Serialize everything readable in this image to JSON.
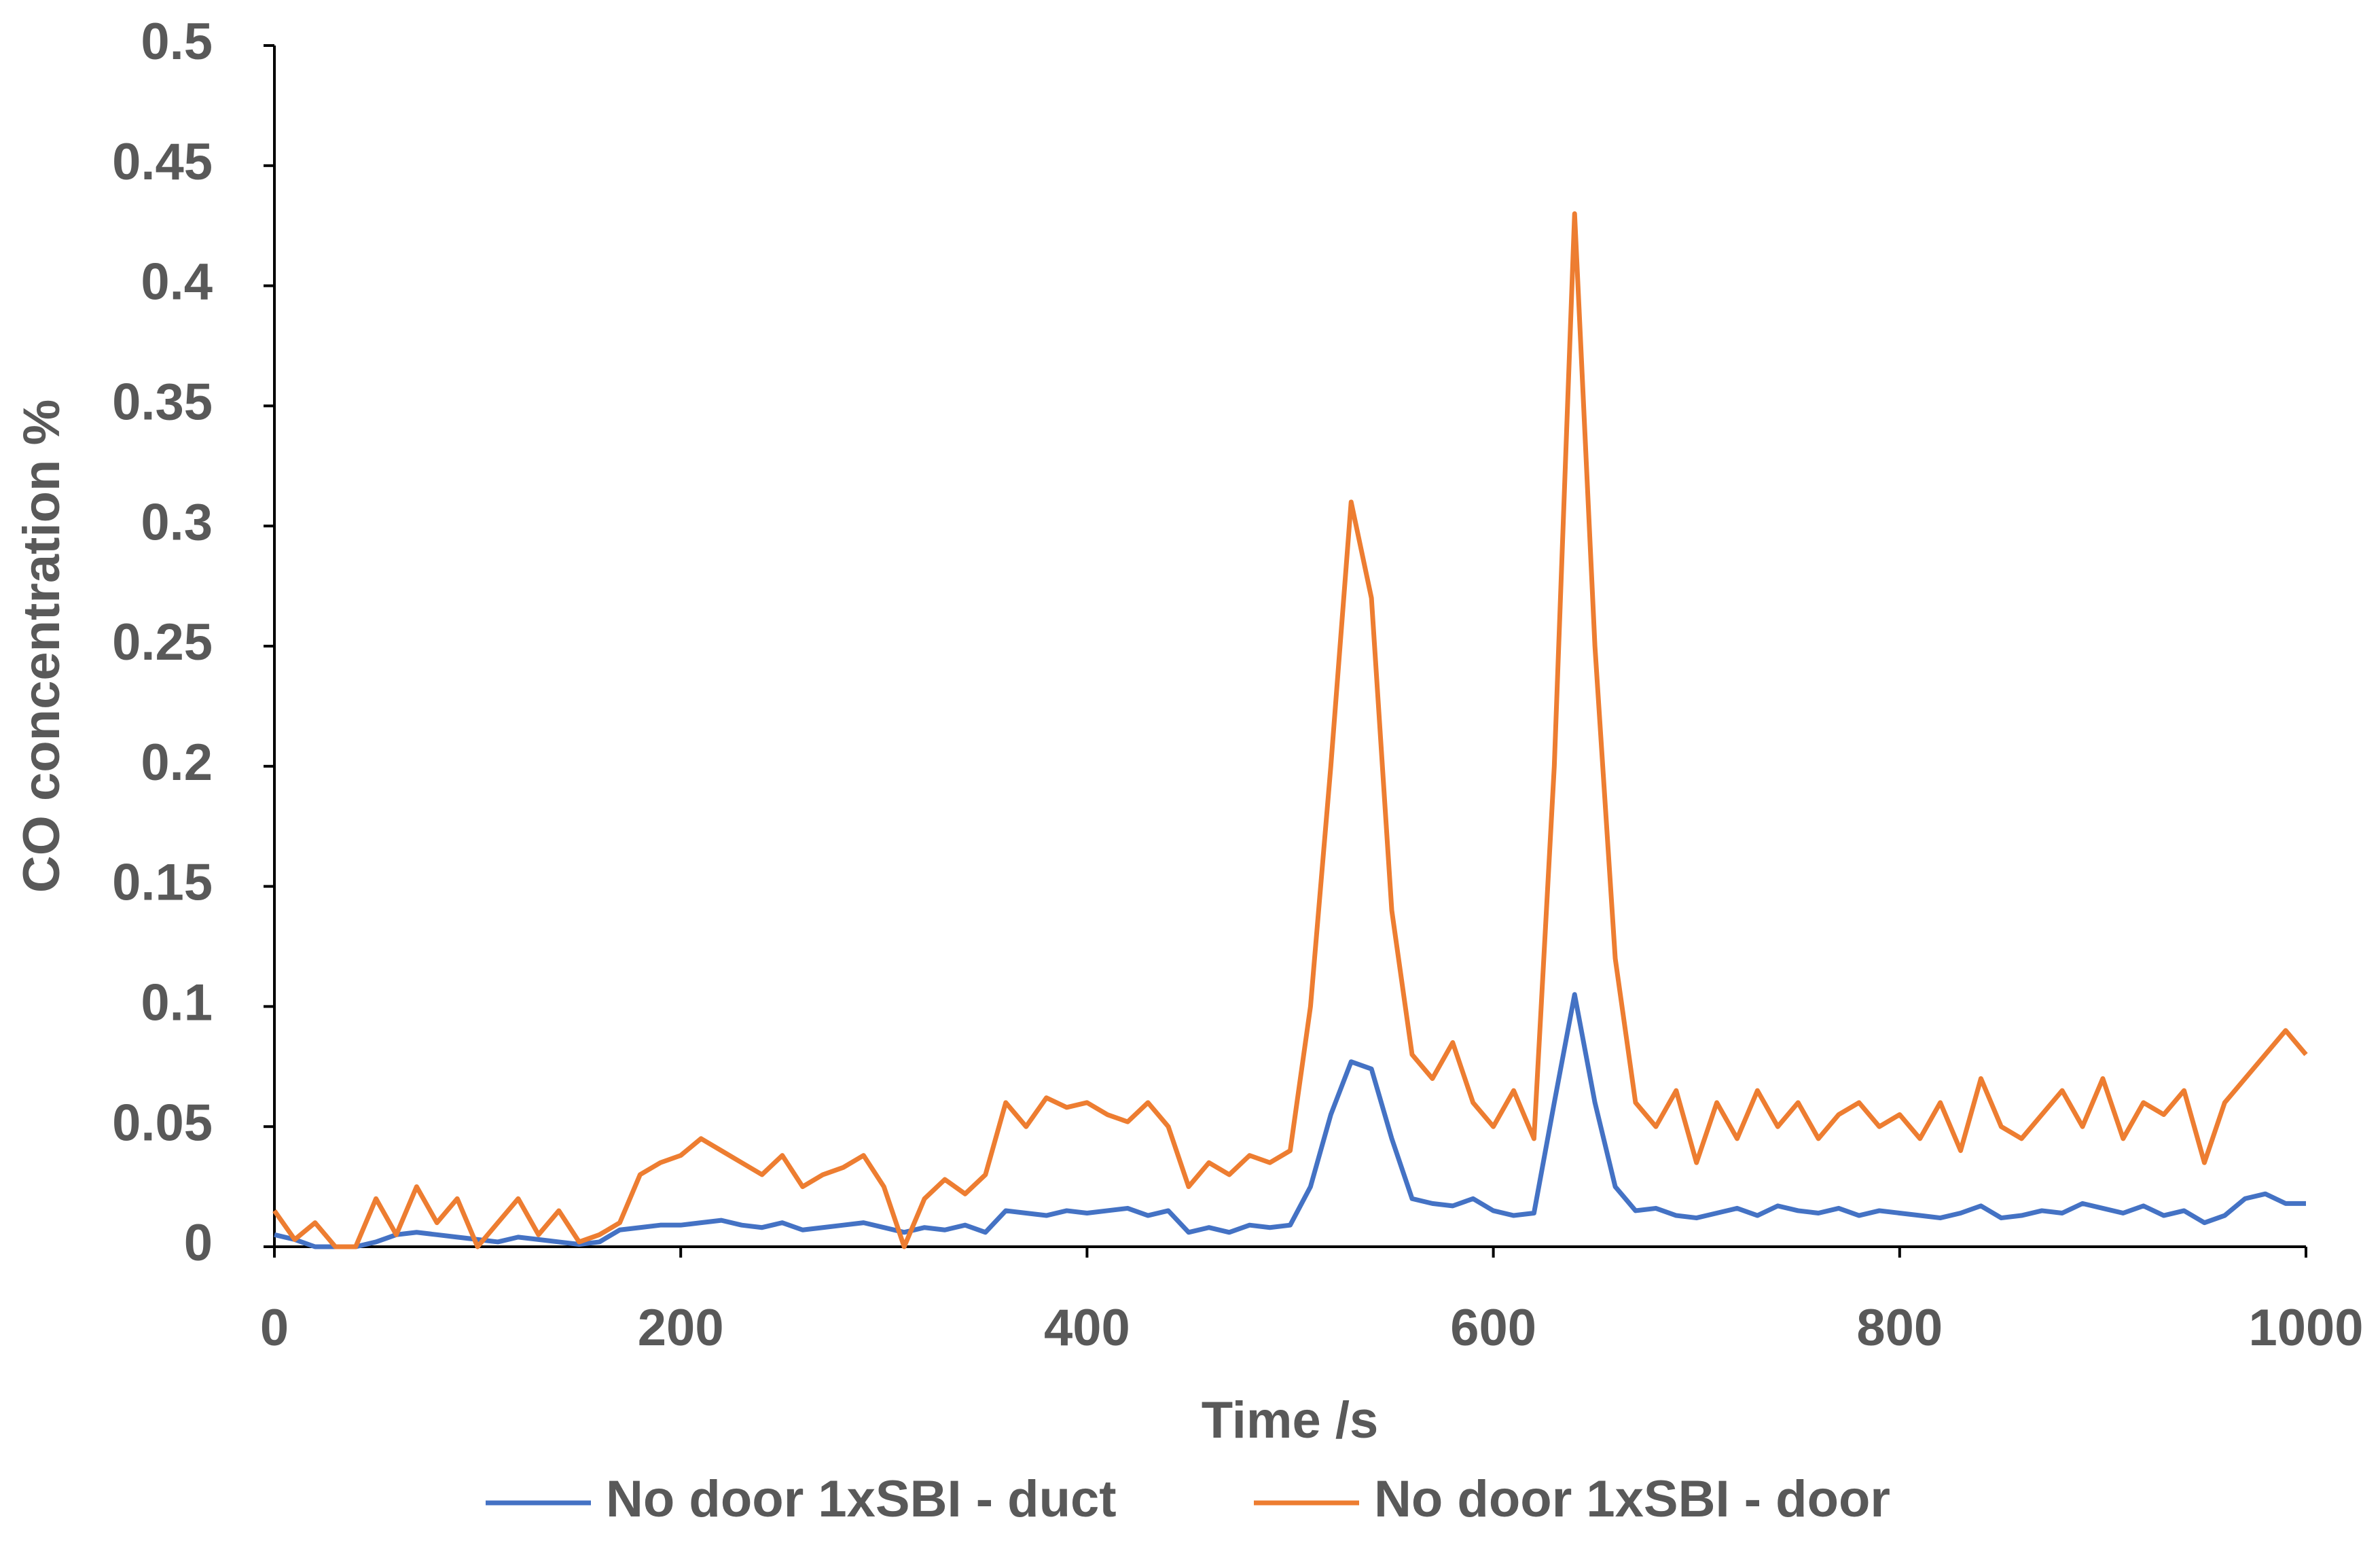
{
  "chart_data": {
    "type": "line",
    "xlabel": "Time /s",
    "ylabel": "CO concentration %",
    "x": [
      0,
      10,
      20,
      30,
      40,
      50,
      60,
      70,
      80,
      90,
      100,
      110,
      120,
      130,
      140,
      150,
      160,
      170,
      180,
      190,
      200,
      210,
      220,
      230,
      240,
      250,
      260,
      270,
      280,
      290,
      300,
      310,
      320,
      330,
      340,
      350,
      360,
      370,
      380,
      390,
      400,
      410,
      420,
      430,
      440,
      450,
      460,
      470,
      480,
      490,
      500,
      510,
      520,
      530,
      540,
      550,
      560,
      570,
      580,
      590,
      600,
      610,
      620,
      630,
      640,
      650,
      660,
      670,
      680,
      690,
      700,
      710,
      720,
      730,
      740,
      750,
      760,
      770,
      780,
      790,
      800,
      810,
      820,
      830,
      840,
      850,
      860,
      870,
      880,
      890,
      900,
      910,
      920,
      930,
      940,
      950,
      960,
      970,
      980,
      990,
      1000
    ],
    "series": [
      {
        "name": "No door 1xSBI - duct",
        "color": "#4472c4",
        "values": [
          0.005,
          0.003,
          0,
          0,
          0,
          0.002,
          0.005,
          0.006,
          0.005,
          0.004,
          0.003,
          0.002,
          0.004,
          0.003,
          0.002,
          0.001,
          0.002,
          0.007,
          0.008,
          0.009,
          0.009,
          0.01,
          0.011,
          0.009,
          0.008,
          0.01,
          0.007,
          0.008,
          0.009,
          0.01,
          0.008,
          0.006,
          0.008,
          0.007,
          0.009,
          0.006,
          0.015,
          0.014,
          0.013,
          0.015,
          0.014,
          0.015,
          0.016,
          0.013,
          0.015,
          0.006,
          0.008,
          0.006,
          0.009,
          0.008,
          0.009,
          0.025,
          0.055,
          0.077,
          0.074,
          0.045,
          0.02,
          0.018,
          0.017,
          0.02,
          0.015,
          0.013,
          0.014,
          0.06,
          0.105,
          0.06,
          0.025,
          0.015,
          0.016,
          0.013,
          0.012,
          0.014,
          0.016,
          0.013,
          0.017,
          0.015,
          0.014,
          0.016,
          0.013,
          0.015,
          0.014,
          0.013,
          0.012,
          0.014,
          0.017,
          0.012,
          0.013,
          0.015,
          0.014,
          0.018,
          0.016,
          0.014,
          0.017,
          0.013,
          0.015,
          0.01,
          0.013,
          0.02,
          0.022,
          0.018,
          0.018
        ]
      },
      {
        "name": "No door 1xSBI - door",
        "color": "#ed7d31",
        "values": [
          0.015,
          0.003,
          0.01,
          0,
          0,
          0.02,
          0.005,
          0.025,
          0.01,
          0.02,
          0,
          0.01,
          0.02,
          0.005,
          0.015,
          0.002,
          0.005,
          0.01,
          0.03,
          0.035,
          0.038,
          0.045,
          0.04,
          0.035,
          0.03,
          0.038,
          0.025,
          0.03,
          0.033,
          0.038,
          0.025,
          0,
          0.02,
          0.028,
          0.022,
          0.03,
          0.06,
          0.05,
          0.062,
          0.058,
          0.06,
          0.055,
          0.052,
          0.06,
          0.05,
          0.025,
          0.035,
          0.03,
          0.038,
          0.035,
          0.04,
          0.1,
          0.2,
          0.31,
          0.27,
          0.14,
          0.08,
          0.07,
          0.085,
          0.06,
          0.05,
          0.065,
          0.045,
          0.2,
          0.43,
          0.25,
          0.12,
          0.06,
          0.05,
          0.065,
          0.035,
          0.06,
          0.045,
          0.065,
          0.05,
          0.06,
          0.045,
          0.055,
          0.06,
          0.05,
          0.055,
          0.045,
          0.06,
          0.04,
          0.07,
          0.05,
          0.045,
          0.055,
          0.065,
          0.05,
          0.07,
          0.045,
          0.06,
          0.055,
          0.065,
          0.035,
          0.06,
          0.07,
          0.08,
          0.09,
          0.08
        ]
      }
    ],
    "xlim": [
      0,
      1000
    ],
    "xticks": [
      0,
      200,
      400,
      600,
      800,
      1000
    ],
    "ylim": [
      0,
      0.5
    ],
    "yticks": [
      0,
      0.05,
      0.1,
      0.15,
      0.2,
      0.25,
      0.3,
      0.35,
      0.4,
      0.45,
      0.5
    ],
    "grid": false,
    "legend": "bottom"
  }
}
